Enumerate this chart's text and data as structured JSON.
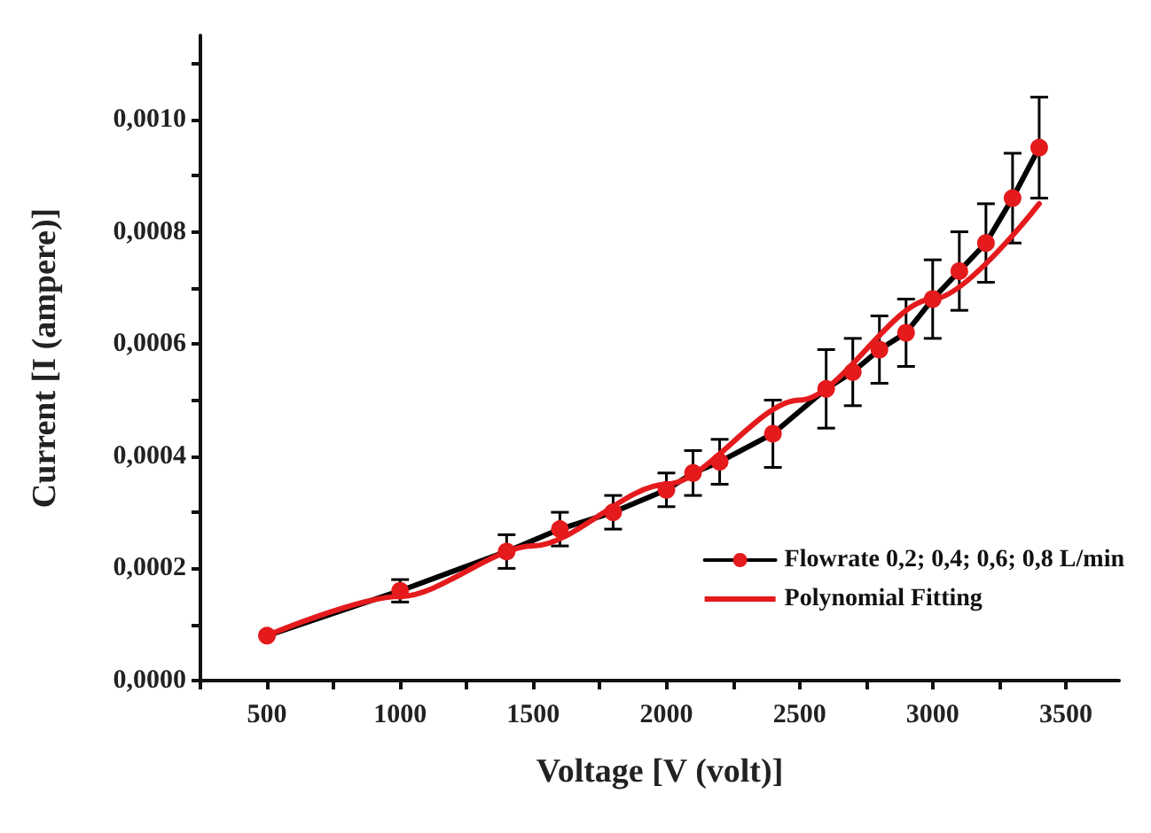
{
  "chart_data": {
    "type": "line",
    "xlabel": "Voltage [V (volt)]",
    "ylabel": "Current [I (ampere)]",
    "xlim": [
      250,
      3700
    ],
    "xticks": [
      {
        "value": 250,
        "label": null
      },
      500,
      {
        "value": 750,
        "label": null
      },
      1000,
      {
        "value": 1250,
        "label": null
      },
      1500,
      {
        "value": 1750,
        "label": null
      },
      2000,
      {
        "value": 2250,
        "label": null
      },
      2500,
      {
        "value": 2750,
        "label": null
      },
      3000,
      {
        "value": 3250,
        "label": null
      },
      3500
    ],
    "ylim": [
      0,
      0.00115
    ],
    "yticks": [
      {
        "value": 0,
        "label": "0,0000"
      },
      {
        "value": 0.0001,
        "label": null
      },
      {
        "value": 0.0002,
        "label": "0,0002"
      },
      {
        "value": 0.0003,
        "label": null
      },
      {
        "value": 0.0004,
        "label": "0,0004"
      },
      {
        "value": 0.0005,
        "label": null
      },
      {
        "value": 0.0006,
        "label": "0,0006"
      },
      {
        "value": 0.0007,
        "label": null
      },
      {
        "value": 0.0008,
        "label": "0,0008"
      },
      {
        "value": 0.0009,
        "label": null
      },
      {
        "value": 0.001,
        "label": "0,0010"
      },
      {
        "value": 0.0011,
        "label": null
      }
    ],
    "grid": false,
    "legend": "bottom right",
    "line_style": "solid",
    "series": [
      {
        "name": "Flowrate 0,2; 0,4; 0,6; 0,8 L/min",
        "marker": "circle",
        "color": "#000000",
        "colors": [
          "#e41a1c",
          "#e41a1c",
          "#e41a1c",
          "#e41a1c",
          "#e41a1c",
          "#e41a1c",
          "#e41a1c",
          "#e41a1c",
          "#e41a1c",
          "#e41a1c",
          "#e41a1c",
          "#e41a1c",
          "#e41a1c",
          "#e41a1c",
          "#e41a1c",
          "#e41a1c",
          "#e41a1c",
          "#e41a1c"
        ],
        "x": [
          500,
          1000,
          1400,
          1600,
          1800,
          2000,
          2100,
          2200,
          2400,
          2600,
          2700,
          2800,
          2900,
          3000,
          3100,
          3200,
          3300,
          3400
        ],
        "values": [
          8e-05,
          0.00016,
          0.00023,
          0.00027,
          0.0003,
          0.00034,
          0.00037,
          0.00039,
          0.00044,
          0.00052,
          0.00055,
          0.00059,
          0.00062,
          0.00068,
          0.00073,
          0.00078,
          0.00086,
          0.00095
        ],
        "errors": [
          null,
          2e-05,
          3e-05,
          3e-05,
          3e-05,
          3e-05,
          4e-05,
          4e-05,
          6e-05,
          7e-05,
          6e-05,
          6e-05,
          6e-05,
          7e-05,
          7e-05,
          7e-05,
          8e-05,
          9e-05
        ]
      },
      {
        "name": "Polynomial Fitting",
        "marker": "none",
        "color": "#e41a1c",
        "x": [
          500,
          1000,
          1500,
          2000,
          2500,
          3000,
          3400
        ],
        "values": [
          8e-05,
          0.00015,
          0.00024,
          0.00035,
          0.0005,
          0.00068,
          0.00085
        ]
      }
    ]
  }
}
